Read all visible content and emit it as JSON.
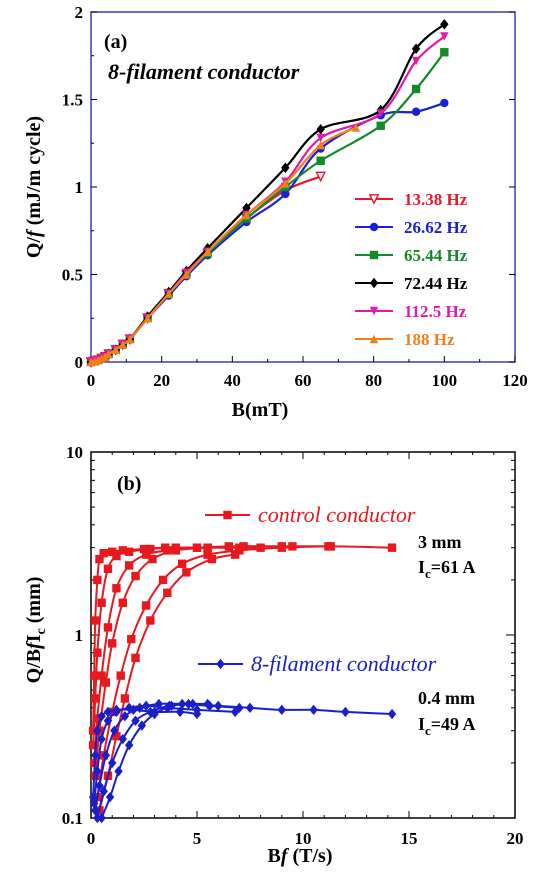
{
  "chart_data": [
    {
      "type": "line",
      "panel_label": "(a)",
      "subtitle": "8-filament conductor",
      "xlabel": "B(mT)",
      "ylabel": "Q/f (mJ/m cycle)",
      "xlim": [
        0,
        120
      ],
      "ylim": [
        0,
        2
      ],
      "xticks": [
        "0",
        "20",
        "40",
        "60",
        "80",
        "100",
        "120"
      ],
      "yticks": [
        "0",
        "0.5",
        "1",
        "1.5",
        "2"
      ],
      "legend_position": "right",
      "series": [
        {
          "name": "13.38 Hz",
          "color": "#e8182b",
          "marker": "tri-down-open",
          "x": [
            0,
            1,
            2,
            3,
            4,
            5,
            7,
            9,
            11,
            16,
            22,
            27,
            33,
            44,
            55,
            65
          ],
          "y": [
            0,
            0.005,
            0.01,
            0.02,
            0.03,
            0.045,
            0.07,
            0.1,
            0.13,
            0.25,
            0.39,
            0.5,
            0.62,
            0.82,
            0.98,
            1.06
          ]
        },
        {
          "name": "26.62 Hz",
          "color": "#1a20d8",
          "marker": "circle",
          "x": [
            0,
            1,
            2,
            3,
            4,
            5,
            7,
            9,
            11,
            16,
            22,
            27,
            33,
            44,
            55,
            65,
            82,
            92,
            100
          ],
          "y": [
            0,
            0.005,
            0.01,
            0.02,
            0.03,
            0.045,
            0.07,
            0.1,
            0.13,
            0.25,
            0.38,
            0.49,
            0.61,
            0.8,
            0.96,
            1.22,
            1.41,
            1.43,
            1.48
          ]
        },
        {
          "name": "65.44 Hz",
          "color": "#138a2a",
          "marker": "square",
          "x": [
            0,
            1,
            2,
            3,
            4,
            5,
            7,
            9,
            11,
            16,
            22,
            27,
            33,
            44,
            55,
            65,
            82,
            92,
            100
          ],
          "y": [
            0,
            0.005,
            0.01,
            0.02,
            0.03,
            0.045,
            0.07,
            0.1,
            0.13,
            0.25,
            0.39,
            0.5,
            0.62,
            0.82,
            1.0,
            1.15,
            1.35,
            1.56,
            1.77
          ]
        },
        {
          "name": "72.44 Hz",
          "color": "#000000",
          "marker": "diamond",
          "x": [
            0,
            1,
            2,
            3,
            4,
            5,
            7,
            9,
            11,
            16,
            22,
            27,
            33,
            44,
            55,
            65,
            82,
            92,
            100
          ],
          "y": [
            0,
            0.005,
            0.01,
            0.02,
            0.03,
            0.045,
            0.07,
            0.1,
            0.13,
            0.26,
            0.4,
            0.52,
            0.65,
            0.88,
            1.11,
            1.33,
            1.44,
            1.79,
            1.93
          ]
        },
        {
          "name": "112.5 Hz",
          "color": "#e21aa8",
          "marker": "tri-down",
          "x": [
            0,
            1,
            2,
            3,
            4,
            5,
            7,
            9,
            11,
            16,
            22,
            27,
            33,
            44,
            55,
            65,
            82,
            92,
            100
          ],
          "y": [
            0,
            0.005,
            0.01,
            0.02,
            0.03,
            0.045,
            0.07,
            0.1,
            0.13,
            0.25,
            0.39,
            0.51,
            0.63,
            0.84,
            1.03,
            1.28,
            1.42,
            1.72,
            1.86
          ]
        },
        {
          "name": "188 Hz",
          "color": "#f07f1a",
          "marker": "tri-up",
          "x": [
            0,
            1,
            2,
            3,
            4,
            5,
            7,
            9,
            11,
            16,
            22,
            27,
            33,
            44,
            55,
            65,
            75
          ],
          "y": [
            0,
            0.005,
            0.01,
            0.02,
            0.03,
            0.045,
            0.07,
            0.1,
            0.13,
            0.25,
            0.39,
            0.5,
            0.63,
            0.84,
            1.02,
            1.24,
            1.34
          ]
        }
      ]
    },
    {
      "type": "line",
      "panel_label": "(b)",
      "xlabel": "Bf (T/s)",
      "ylabel": "Q/BfIc (mm)",
      "xlim": [
        0,
        20
      ],
      "ylim": [
        0.1,
        10
      ],
      "yscale": "log",
      "xticks": [
        "0",
        "5",
        "10",
        "15",
        "20"
      ],
      "yticks": [
        "0.1",
        "1",
        "10"
      ],
      "series": [
        {
          "name": "control conductor",
          "color": "#e8181f",
          "marker": "square",
          "curves": [
            {
              "x": [
                0.1,
                0.15,
                0.2,
                0.3,
                0.4,
                0.6,
                1.0,
                1.5,
                2.5,
                3.5,
                5.0,
                7.0
              ],
              "y": [
                0.3,
                0.6,
                1.2,
                2.0,
                2.6,
                2.8,
                2.85,
                2.9,
                2.95,
                3.0,
                3.0,
                3.0
              ]
            },
            {
              "x": [
                0.1,
                0.2,
                0.3,
                0.5,
                0.8,
                1.2,
                1.8,
                2.8,
                4.0,
                5.5,
                8.0
              ],
              "y": [
                0.25,
                0.45,
                0.8,
                1.5,
                2.3,
                2.7,
                2.85,
                2.95,
                3.0,
                3.0,
                3.0
              ]
            },
            {
              "x": [
                0.15,
                0.3,
                0.5,
                0.8,
                1.2,
                1.8,
                2.6,
                3.6,
                5.0,
                6.5,
                9.0,
                11.3
              ],
              "y": [
                0.2,
                0.35,
                0.6,
                1.1,
                1.8,
                2.4,
                2.75,
                2.9,
                3.0,
                3.05,
                3.05,
                3.05
              ]
            },
            {
              "x": [
                0.2,
                0.4,
                0.7,
                1.0,
                1.5,
                2.1,
                2.9,
                4.0,
                5.5,
                7.2,
                9.5,
                11.2
              ],
              "y": [
                0.17,
                0.3,
                0.55,
                0.9,
                1.5,
                2.1,
                2.6,
                2.9,
                3.0,
                3.05,
                3.05,
                3.05
              ]
            },
            {
              "x": [
                0.3,
                0.6,
                1.0,
                1.4,
                1.9,
                2.6,
                3.4,
                4.3,
                5.5,
                7.0,
                9.0,
                11.3,
                14.2
              ],
              "y": [
                0.13,
                0.22,
                0.38,
                0.6,
                0.95,
                1.45,
                2.0,
                2.45,
                2.75,
                2.9,
                3.0,
                3.05,
                3.0
              ]
            },
            {
              "x": [
                0.4,
                0.8,
                1.2,
                1.6,
                2.1,
                2.8,
                3.6,
                4.5,
                5.7,
                6.8
              ],
              "y": [
                0.11,
                0.17,
                0.28,
                0.45,
                0.75,
                1.2,
                1.7,
                2.2,
                2.6,
                2.75
              ]
            }
          ]
        },
        {
          "name": "8-filament conductor",
          "color": "#1a20c8",
          "marker": "diamond",
          "curves": [
            {
              "x": [
                0.1,
                0.2,
                0.3,
                0.5,
                0.8,
                1.2,
                2.0,
                3.0,
                4.2,
                5.0
              ],
              "y": [
                0.13,
                0.22,
                0.3,
                0.36,
                0.38,
                0.39,
                0.39,
                0.38,
                0.38,
                0.37
              ]
            },
            {
              "x": [
                0.15,
                0.3,
                0.5,
                0.8,
                1.2,
                1.8,
                2.6,
                3.6,
                5.0,
                6.8
              ],
              "y": [
                0.12,
                0.18,
                0.27,
                0.34,
                0.38,
                0.4,
                0.41,
                0.4,
                0.39,
                0.38
              ]
            },
            {
              "x": [
                0.2,
                0.4,
                0.7,
                1.1,
                1.6,
                2.3,
                3.2,
                4.3,
                5.6,
                7.0
              ],
              "y": [
                0.11,
                0.15,
                0.22,
                0.3,
                0.36,
                0.4,
                0.42,
                0.42,
                0.41,
                0.4
              ]
            },
            {
              "x": [
                0.3,
                0.6,
                1.0,
                1.5,
                2.1,
                2.8,
                3.7,
                4.8,
                6.0,
                7.5,
                9.0,
                10.5,
                12.0,
                14.2
              ],
              "y": [
                0.1,
                0.14,
                0.2,
                0.27,
                0.34,
                0.38,
                0.41,
                0.42,
                0.41,
                0.4,
                0.39,
                0.39,
                0.38,
                0.37
              ]
            },
            {
              "x": [
                0.5,
                0.9,
                1.3,
                1.8,
                2.4,
                3.0,
                3.8,
                4.6,
                5.5
              ],
              "y": [
                0.1,
                0.13,
                0.18,
                0.25,
                0.32,
                0.37,
                0.41,
                0.42,
                0.42
              ]
            }
          ]
        }
      ],
      "annotations": [
        {
          "text": "3 mm",
          "near": "control conductor"
        },
        {
          "text": "Ic=61 A",
          "near": "control conductor"
        },
        {
          "text": "0.4 mm",
          "near": "8-filament conductor"
        },
        {
          "text": "Ic=49 A",
          "near": "8-filament conductor"
        }
      ]
    }
  ]
}
